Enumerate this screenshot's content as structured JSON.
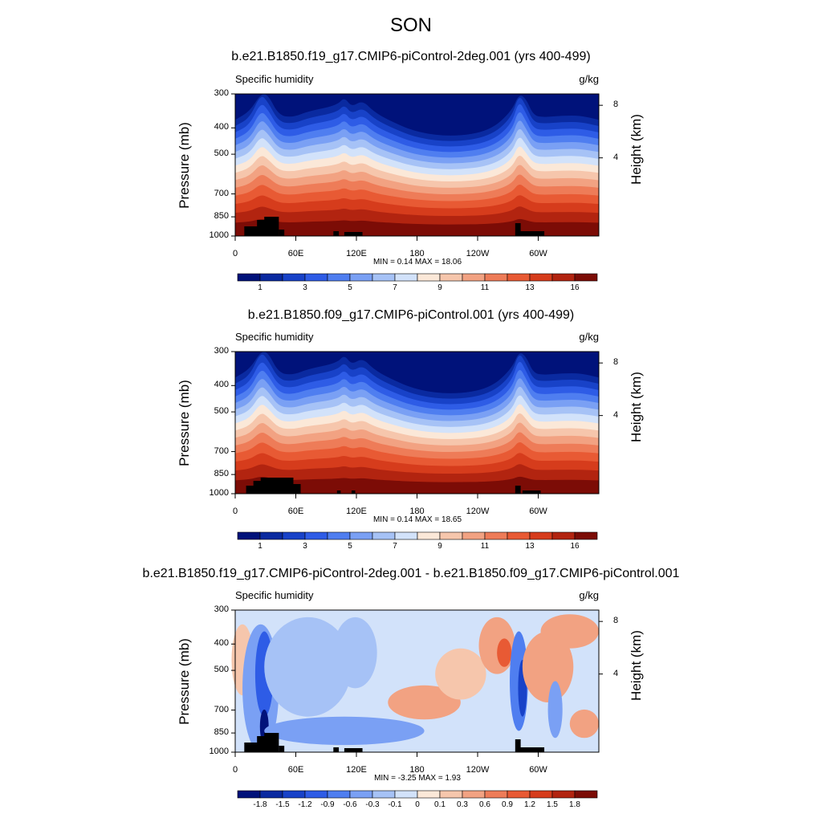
{
  "title": "SON",
  "chart_data": [
    {
      "type": "heatmap",
      "title": "b.e21.B1850.f19_g17.CMIP6-piControl-2deg.001 (yrs 400-499)",
      "left_string": "Specific humidity",
      "right_string": "g/kg",
      "ylabel": "Pressure (mb)",
      "y2label": "Height (km)",
      "x_ticks": [
        "0",
        "60E",
        "120E",
        "180",
        "120W",
        "60W"
      ],
      "y_ticks": [
        "300",
        "400",
        "500",
        "700",
        "850",
        "1000"
      ],
      "y2_ticks": [
        "8",
        "4"
      ],
      "min_max": "MIN =   0.14  MAX =  18.06",
      "colorbar_labels": [
        "1",
        "3",
        "5",
        "7",
        "9",
        "11",
        "13",
        "16"
      ],
      "min": 0.14,
      "max": 18.06
    },
    {
      "type": "heatmap",
      "title": "b.e21.B1850.f09_g17.CMIP6-piControl.001 (yrs 400-499)",
      "left_string": "Specific humidity",
      "right_string": "g/kg",
      "ylabel": "Pressure (mb)",
      "y2label": "Height (km)",
      "x_ticks": [
        "0",
        "60E",
        "120E",
        "180",
        "120W",
        "60W"
      ],
      "y_ticks": [
        "300",
        "400",
        "500",
        "700",
        "850",
        "1000"
      ],
      "y2_ticks": [
        "8",
        "4"
      ],
      "min_max": "MIN =   0.14  MAX =  18.65",
      "colorbar_labels": [
        "1",
        "3",
        "5",
        "7",
        "9",
        "11",
        "13",
        "16"
      ],
      "min": 0.14,
      "max": 18.65
    },
    {
      "type": "heatmap",
      "title": "b.e21.B1850.f19_g17.CMIP6-piControl-2deg.001 - b.e21.B1850.f09_g17.CMIP6-piControl.001",
      "left_string": "Specific humidity",
      "right_string": "g/kg",
      "ylabel": "Pressure (mb)",
      "y2label": "Height (km)",
      "x_ticks": [
        "0",
        "60E",
        "120E",
        "180",
        "120W",
        "60W"
      ],
      "y_ticks": [
        "300",
        "400",
        "500",
        "700",
        "850",
        "1000"
      ],
      "y2_ticks": [
        "8",
        "4"
      ],
      "min_max": "MIN =  -3.25  MAX =   1.93",
      "colorbar_labels": [
        "-1.8",
        "-1.5",
        "-1.2",
        "-0.9",
        "-0.6",
        "-0.3",
        "-0.1",
        "0",
        "0.1",
        "0.3",
        "0.6",
        "0.9",
        "1.2",
        "1.5",
        "1.8"
      ],
      "min": -3.25,
      "max": 1.93
    }
  ],
  "colors": {
    "abs_palette": [
      "#00127a",
      "#0a2aa0",
      "#1842c8",
      "#2e5ce6",
      "#4f7ef0",
      "#7aa0f4",
      "#a6c2f6",
      "#d2e2fa",
      "#fbe8d8",
      "#f6c6ac",
      "#f2a282",
      "#ee7c58",
      "#e85a34",
      "#d63c1c",
      "#b22410",
      "#7c0c06"
    ],
    "diff_palette": [
      "#00127a",
      "#0a2aa0",
      "#1842c8",
      "#2e5ce6",
      "#4f7ef0",
      "#7aa0f4",
      "#a6c2f6",
      "#d2e2fa",
      "#fbe8d8",
      "#f6c6ac",
      "#f2a282",
      "#ee7c58",
      "#e85a34",
      "#d63c1c",
      "#b22410",
      "#7c0c06"
    ]
  }
}
